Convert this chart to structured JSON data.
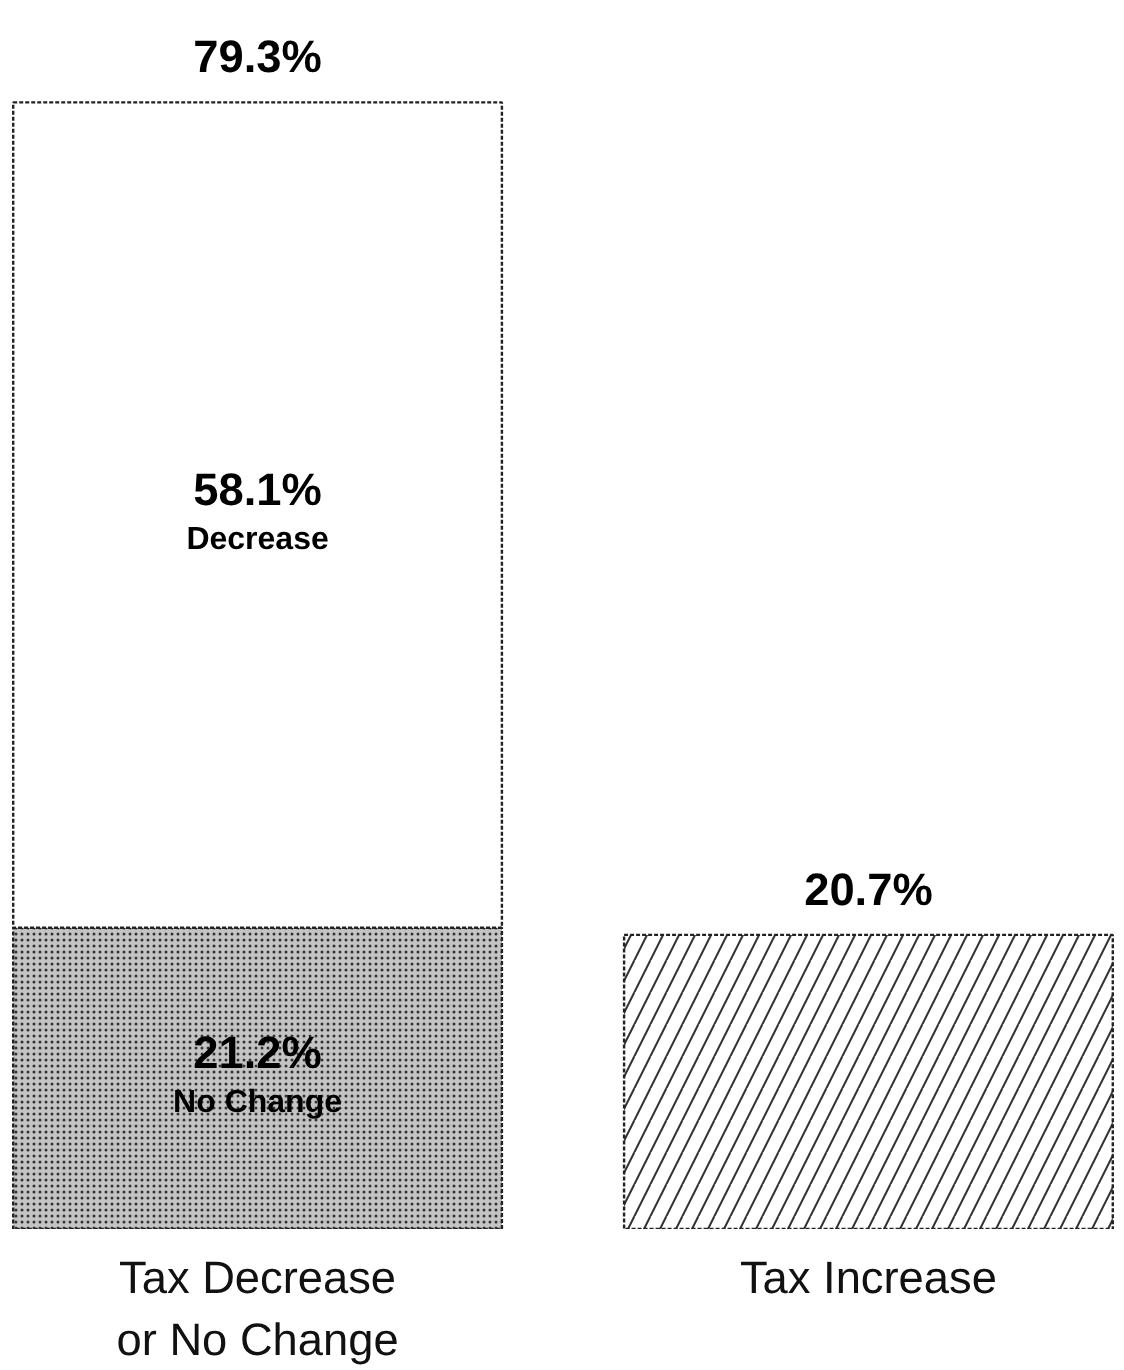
{
  "chart_data": {
    "type": "bar",
    "stacked": true,
    "categories": [
      "Tax Decrease\nor No Change",
      "Tax Increase"
    ],
    "series": [
      {
        "name": "No Change",
        "color": "#c4c4c4",
        "values": [
          21.2,
          null
        ],
        "value_labels": [
          "21.2%",
          null
        ]
      },
      {
        "name": "Decrease",
        "color": "#ffffff",
        "values": [
          58.1,
          null
        ],
        "value_labels": [
          "58.1%",
          null
        ]
      },
      {
        "color": "#ffffff",
        "values": [
          null,
          20.7
        ]
      }
    ],
    "totals": [
      "79.3%",
      "20.7%"
    ],
    "grid": false
  }
}
